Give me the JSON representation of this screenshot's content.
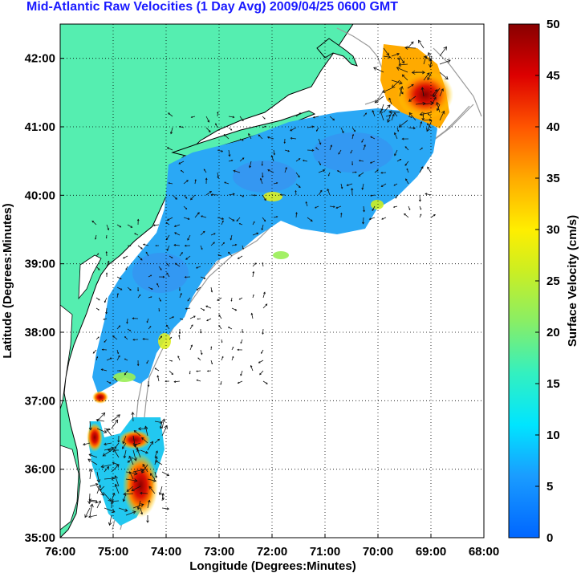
{
  "title": "Mid-Atlantic Raw Velocities (1 Day Avg) 2009/04/25 0600 GMT",
  "xlabel": "Longitude (Degrees:Minutes)",
  "ylabel": "Latitude (Degrees:Minutes)",
  "colorbar": {
    "label": "Surface Velocity (cm/s)",
    "ticks": [
      "0",
      "5",
      "10",
      "15",
      "20",
      "25",
      "30",
      "35",
      "40",
      "45",
      "50"
    ],
    "min": 0,
    "max": 50
  },
  "axes": {
    "x_ticks": [
      "76:00",
      "75:00",
      "74:00",
      "73:00",
      "72:00",
      "71:00",
      "70:00",
      "69:00",
      "68:00"
    ],
    "y_ticks": [
      "42:00",
      "41:00",
      "40:00",
      "39:00",
      "38:00",
      "37:00",
      "36:00",
      "35:00"
    ],
    "xlim": [
      -76,
      -68
    ],
    "ylim": [
      35,
      42.5
    ],
    "grid": "dotted"
  },
  "colors": {
    "land": "#55eeb0",
    "ocean": "#ffffff",
    "title": "#1a1aff",
    "coast": "#000000",
    "bathymetry": "#999999"
  }
}
